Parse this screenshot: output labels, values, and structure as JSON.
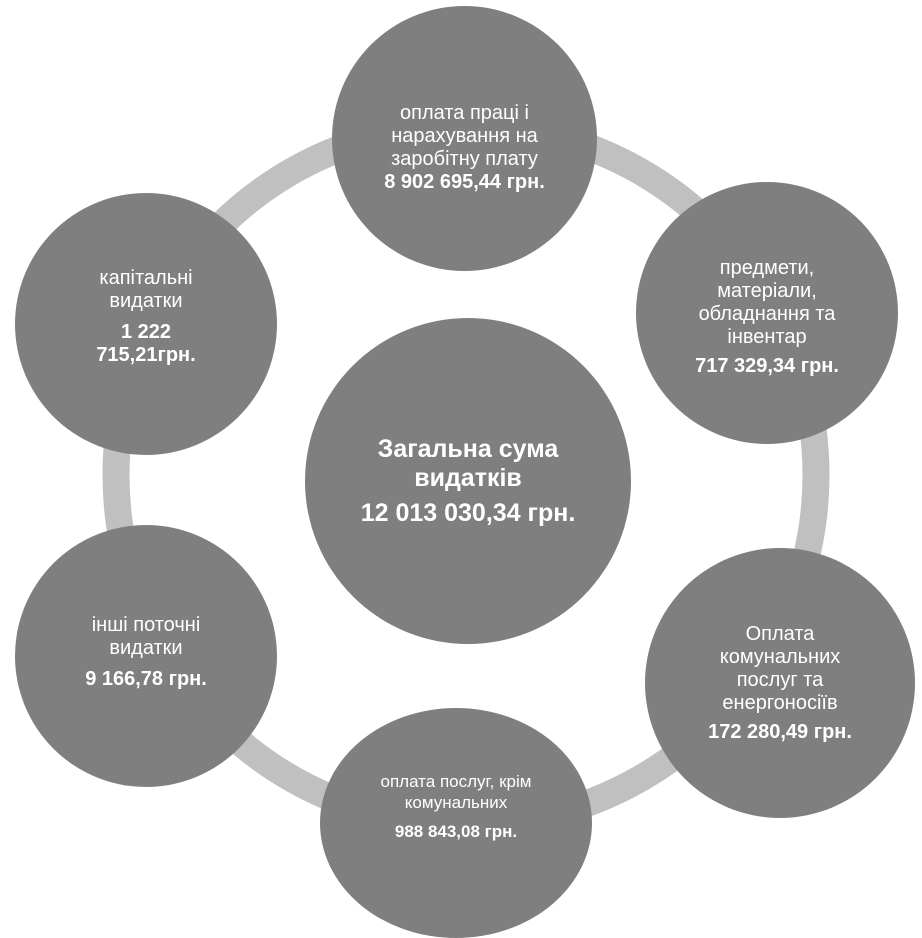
{
  "colors": {
    "node_fill": "#7f7f7f",
    "ring": "#c0c0c0",
    "text": "#ffffff",
    "background": "#ffffff"
  },
  "center": {
    "label": "Загальна сума видатків",
    "amount": "12 013 030,34 грн."
  },
  "nodes": [
    {
      "label": "оплата праці і нарахування на заробітну плату",
      "amount": "8 902 695,44 грн."
    },
    {
      "label": "предмети, матеріали, обладнання та інвентар",
      "amount": "717 329,34 грн."
    },
    {
      "label": "Оплата комунальних послуг та енергоносіїв",
      "amount": "172 280,49 грн."
    },
    {
      "label": "оплата послуг, крім комунальних",
      "amount": "988 843,08 грн."
    },
    {
      "label": "інші поточні видатки",
      "amount": "9 166,78 грн."
    },
    {
      "label": "капітальні видатки",
      "amount": "1 222 715,21грн."
    }
  ]
}
